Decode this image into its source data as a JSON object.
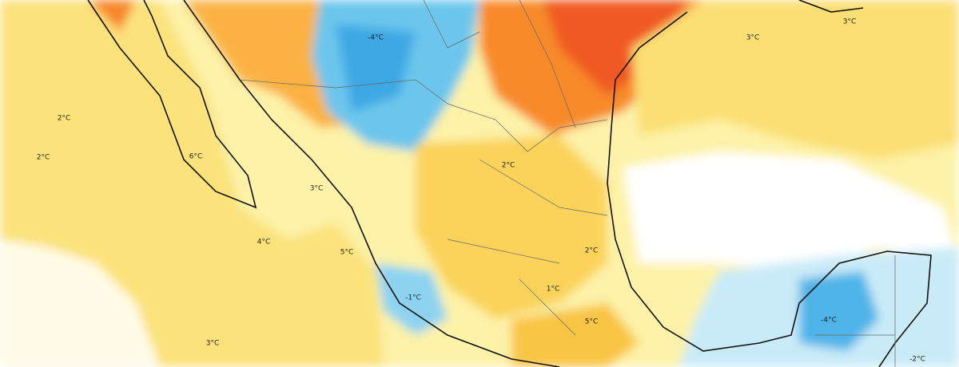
{
  "labels": [
    "-4°C",
    "3°C",
    "3°C",
    "2°C",
    "2°C",
    "6°C",
    "3°C",
    "2°C",
    "4°C",
    "5°C",
    "2°C",
    "1°C",
    "-1°C",
    "5°C",
    "-4°C",
    "3°C",
    "-2°C"
  ]
}
